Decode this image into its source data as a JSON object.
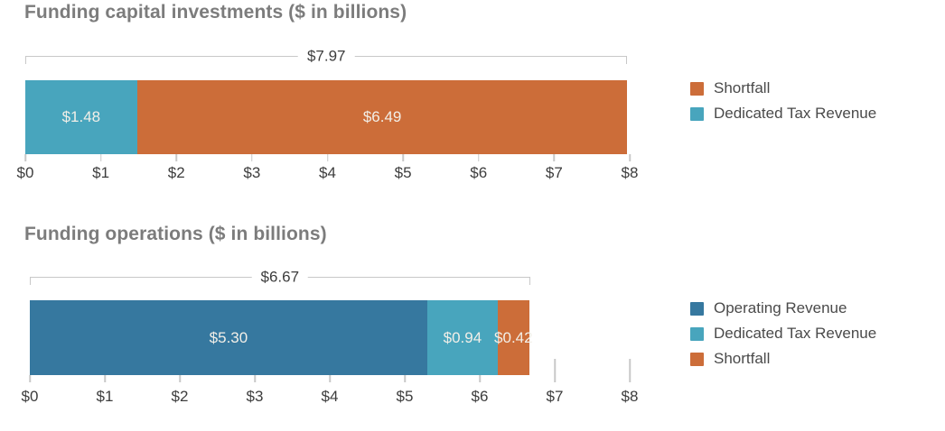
{
  "colors": {
    "background": "#FFFFFF",
    "title_text": "#7C7C7C",
    "axis_text": "#3D3D3D",
    "legend_text": "#4A4A4A",
    "line": "#C8C8C8",
    "bar_label_text": "#F2EFE8",
    "orange": "#CC6D39",
    "teal": "#48A5BD",
    "dark_blue": "#36789F"
  },
  "chart_data": [
    {
      "type": "bar",
      "orientation": "horizontal",
      "stacked": true,
      "title": "Funding capital investments ($ in billions)",
      "xlim": [
        0,
        8
      ],
      "grid": false,
      "legend_position": "right",
      "x_tick_labels": [
        "$0",
        "$1",
        "$2",
        "$3",
        "$4",
        "$5",
        "$6",
        "$7",
        "$8"
      ],
      "total": {
        "value": 7.97,
        "label": "$7.97"
      },
      "segments": [
        {
          "name": "Dedicated Tax Revenue",
          "value": 1.48,
          "label": "$1.48",
          "color": "#48A5BD"
        },
        {
          "name": "Shortfall",
          "value": 6.49,
          "label": "$6.49",
          "color": "#CC6D39"
        }
      ],
      "legend": [
        {
          "label": "Shortfall",
          "color": "#CC6D39"
        },
        {
          "label": "Dedicated Tax Revenue",
          "color": "#48A5BD"
        }
      ],
      "tall_ticks": []
    },
    {
      "type": "bar",
      "orientation": "horizontal",
      "stacked": true,
      "title": "Funding operations ($ in billions)",
      "xlim": [
        0,
        8
      ],
      "grid": false,
      "legend_position": "right",
      "x_tick_labels": [
        "$0",
        "$1",
        "$2",
        "$3",
        "$4",
        "$5",
        "$6",
        "$7",
        "$8"
      ],
      "total": {
        "value": 6.67,
        "label": "$6.67"
      },
      "segments": [
        {
          "name": "Operating Revenue",
          "value": 5.3,
          "label": "$5.30",
          "color": "#36789F"
        },
        {
          "name": "Dedicated Tax Revenue",
          "value": 0.94,
          "label": "$0.94",
          "color": "#48A5BD"
        },
        {
          "name": "Shortfall",
          "value": 0.42,
          "label": "$0.42",
          "color": "#CC6D39"
        }
      ],
      "legend": [
        {
          "label": "Operating Revenue",
          "color": "#36789F"
        },
        {
          "label": "Dedicated Tax Revenue",
          "color": "#48A5BD"
        },
        {
          "label": "Shortfall",
          "color": "#CC6D39"
        }
      ],
      "tall_ticks": [
        7,
        8
      ]
    }
  ]
}
